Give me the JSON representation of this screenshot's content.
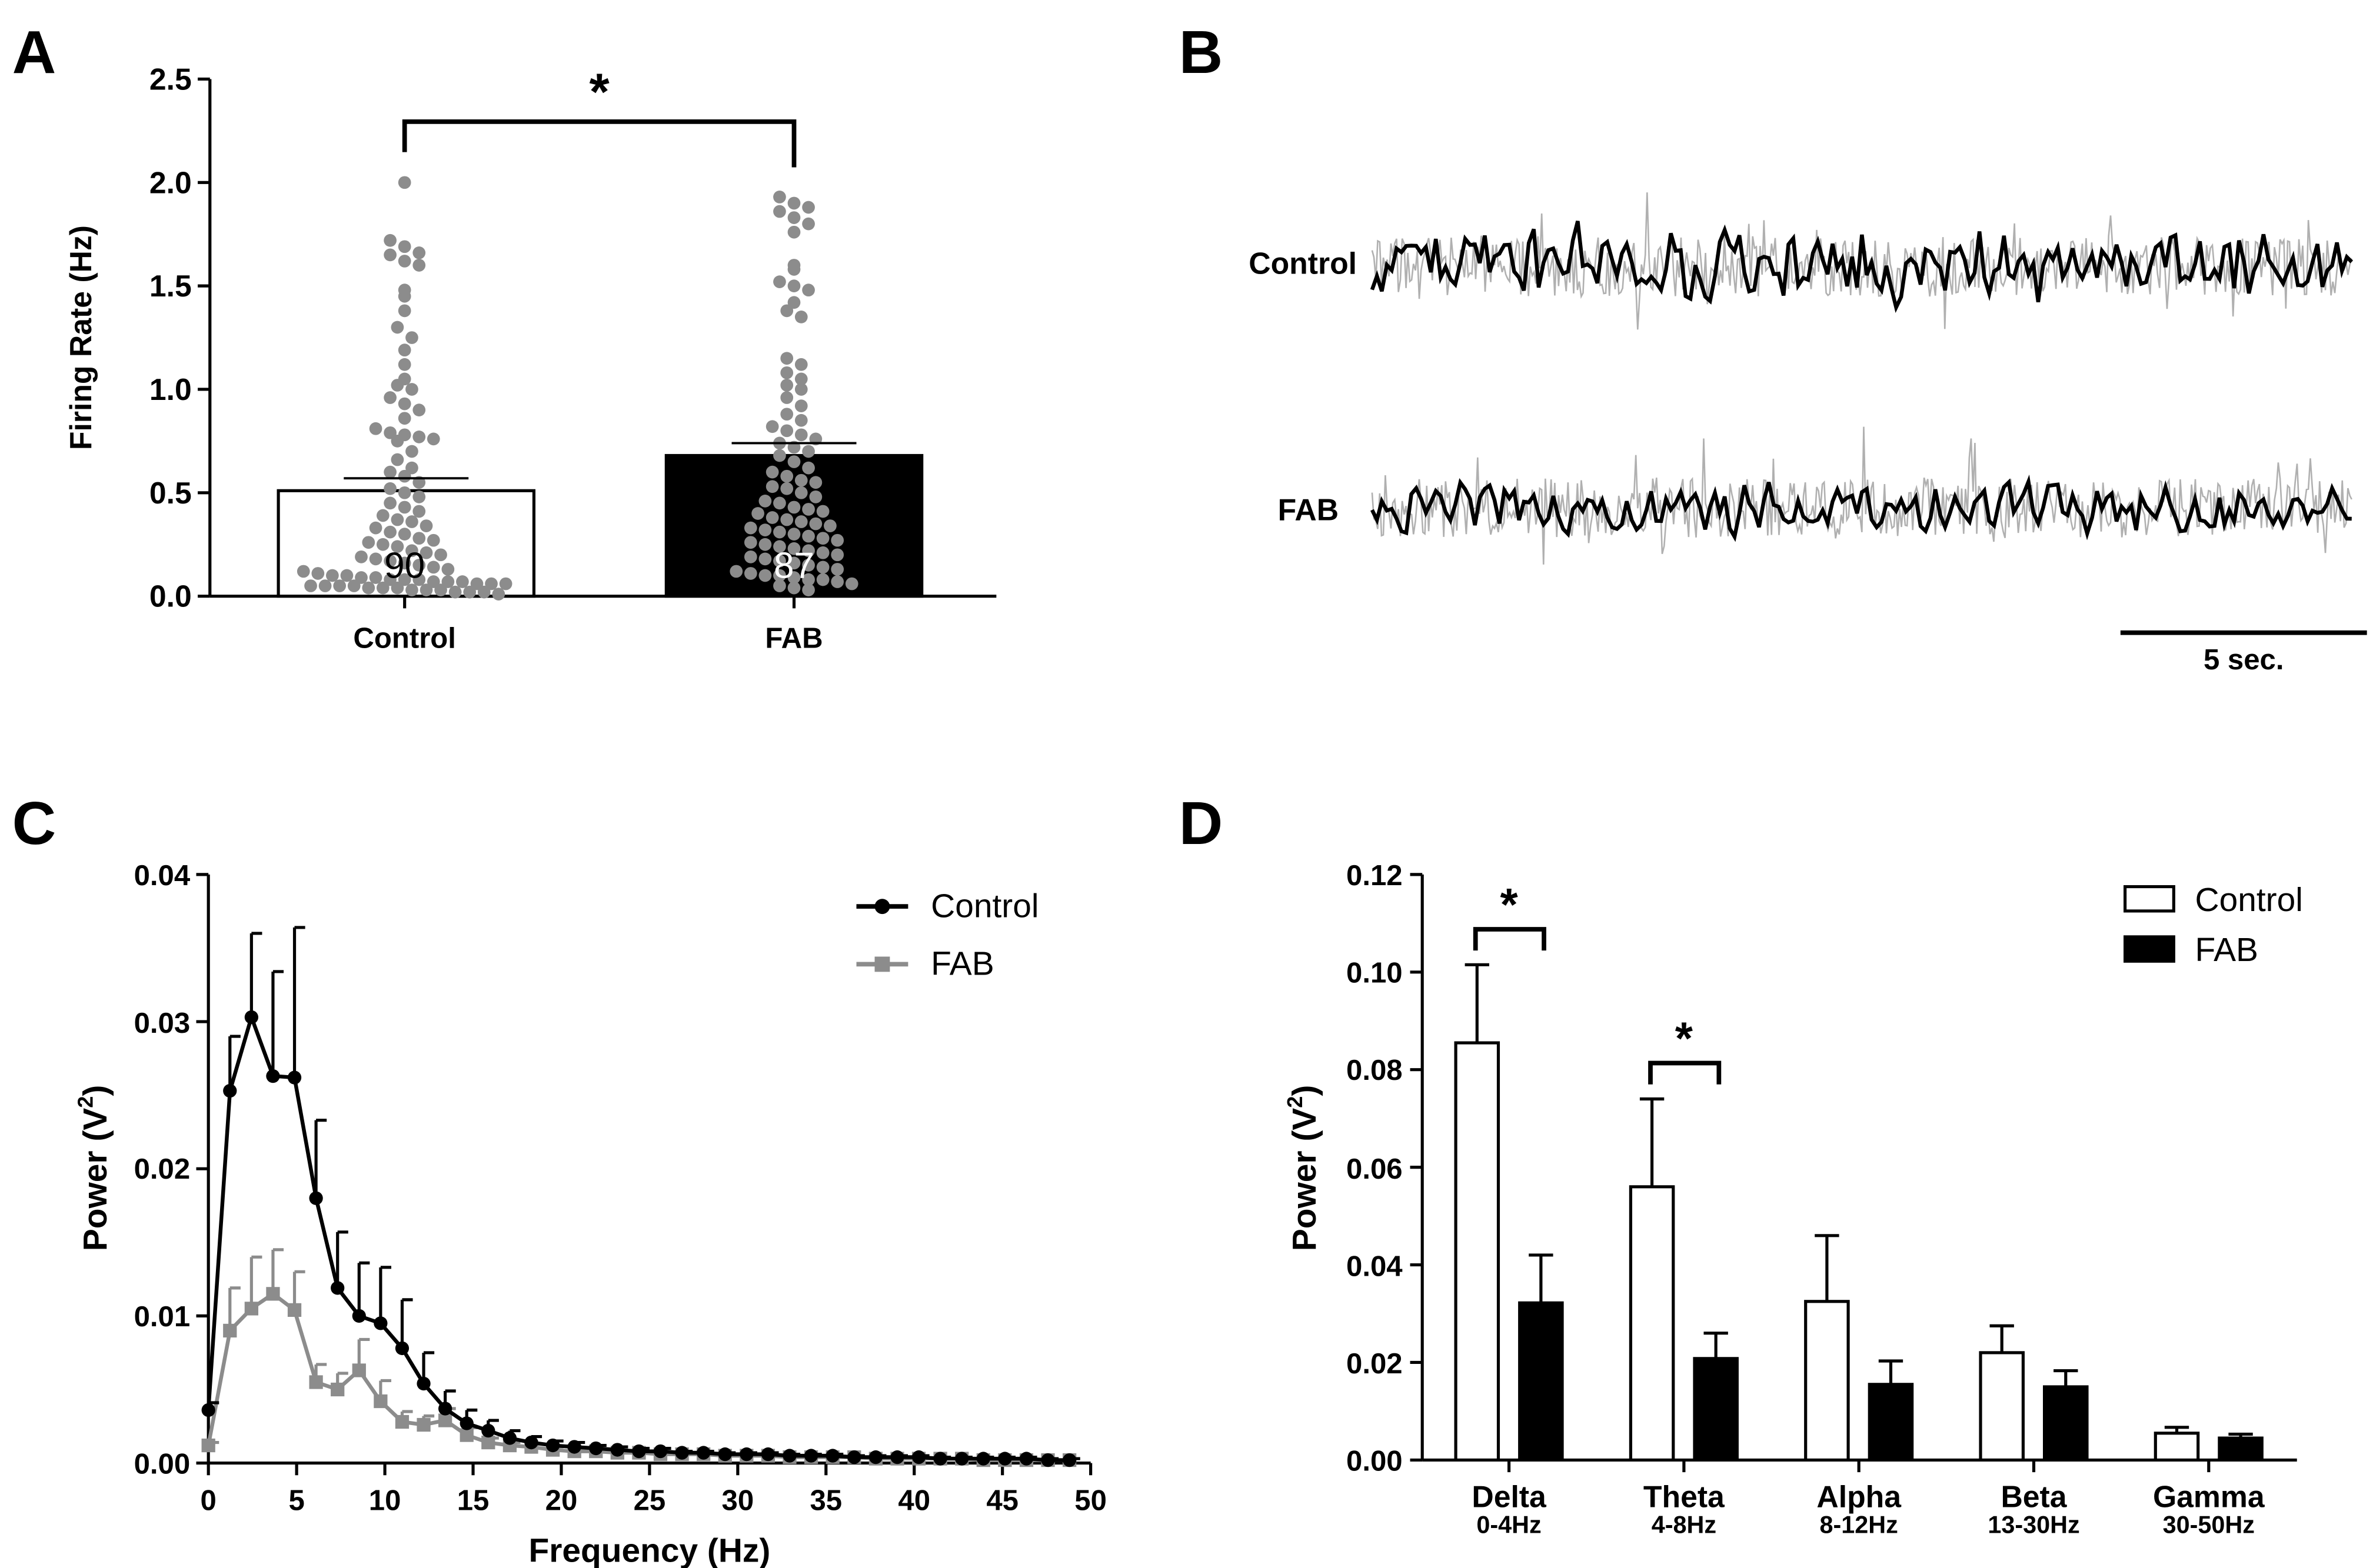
{
  "panels": {
    "a": "A",
    "b": "B",
    "c": "C",
    "d": "D"
  },
  "colors": {
    "black": "#000000",
    "gray": "#8c8c8c",
    "light_gray": "#b0b0b0",
    "white": "#ffffff"
  },
  "chart_data": [
    {
      "id": "A",
      "type": "bar",
      "ylabel": "Firing Rate  (Hz)",
      "ylim": [
        0,
        2.5
      ],
      "yticks": [
        "0.0",
        "0.5",
        "1.0",
        "1.5",
        "2.0",
        "2.5"
      ],
      "categories": [
        "Control",
        "FAB"
      ],
      "values": [
        0.51,
        0.68
      ],
      "sem": [
        0.06,
        0.06
      ],
      "n": [
        "90",
        "87"
      ],
      "significance": "*",
      "points_control": [
        2.0,
        1.72,
        1.69,
        1.66,
        1.65,
        1.62,
        1.6,
        1.48,
        1.45,
        1.38,
        1.3,
        1.25,
        1.19,
        1.12,
        1.05,
        1.02,
        1.0,
        0.96,
        0.93,
        0.9,
        0.86,
        0.81,
        0.79,
        0.78,
        0.77,
        0.76,
        0.75,
        0.7,
        0.66,
        0.62,
        0.6,
        0.58,
        0.55,
        0.52,
        0.5,
        0.48,
        0.45,
        0.43,
        0.41,
        0.39,
        0.37,
        0.36,
        0.34,
        0.33,
        0.31,
        0.3,
        0.28,
        0.27,
        0.26,
        0.25,
        0.24,
        0.22,
        0.21,
        0.2,
        0.19,
        0.18,
        0.17,
        0.16,
        0.15,
        0.14,
        0.13,
        0.12,
        0.11,
        0.1,
        0.1,
        0.09,
        0.09,
        0.08,
        0.08,
        0.08,
        0.07,
        0.07,
        0.07,
        0.06,
        0.06,
        0.06,
        0.05,
        0.05,
        0.05,
        0.05,
        0.04,
        0.04,
        0.04,
        0.03,
        0.03,
        0.03,
        0.02,
        0.02,
        0.02,
        0.01
      ],
      "points_fab": [
        1.93,
        1.9,
        1.88,
        1.86,
        1.83,
        1.8,
        1.76,
        1.6,
        1.58,
        1.52,
        1.5,
        1.48,
        1.42,
        1.38,
        1.35,
        1.15,
        1.12,
        1.08,
        1.05,
        1.02,
        1.0,
        0.96,
        0.92,
        0.88,
        0.85,
        0.82,
        0.8,
        0.78,
        0.76,
        0.74,
        0.72,
        0.7,
        0.68,
        0.65,
        0.62,
        0.6,
        0.58,
        0.56,
        0.55,
        0.53,
        0.52,
        0.5,
        0.48,
        0.46,
        0.45,
        0.43,
        0.42,
        0.41,
        0.4,
        0.38,
        0.37,
        0.36,
        0.35,
        0.34,
        0.33,
        0.32,
        0.31,
        0.3,
        0.29,
        0.28,
        0.27,
        0.26,
        0.25,
        0.24,
        0.23,
        0.22,
        0.21,
        0.2,
        0.19,
        0.18,
        0.17,
        0.16,
        0.15,
        0.14,
        0.13,
        0.12,
        0.11,
        0.1,
        0.1,
        0.09,
        0.08,
        0.08,
        0.07,
        0.06,
        0.05,
        0.04,
        0.03
      ]
    },
    {
      "id": "B",
      "type": "line",
      "traces": [
        "Control",
        "FAB"
      ],
      "scalebar_label": "5 sec."
    },
    {
      "id": "C",
      "type": "line",
      "xlabel": "Frequency (Hz)",
      "ylabel": "Power  (V",
      "ylabel_sup": "2",
      "ylabel_end": ")",
      "xlim": [
        0,
        50
      ],
      "ylim": [
        0,
        0.04
      ],
      "xticks": [
        "0",
        "5",
        "10",
        "15",
        "20",
        "25",
        "30",
        "35",
        "40",
        "45",
        "50"
      ],
      "yticks": [
        "0.00",
        "0.01",
        "0.02",
        "0.03",
        "0.04"
      ],
      "x": [
        0,
        1.22,
        2.44,
        3.66,
        4.88,
        6.1,
        7.32,
        8.54,
        9.76,
        10.98,
        12.2,
        13.42,
        14.64,
        15.86,
        17.08,
        18.3,
        19.52,
        20.74,
        21.96,
        23.18,
        24.4,
        25.62,
        26.84,
        28.06,
        29.28,
        30.5,
        31.72,
        32.94,
        34.16,
        35.38,
        36.6,
        37.82,
        39.04,
        40.26,
        41.48,
        42.7,
        43.92,
        45.14,
        46.36,
        47.58,
        48.8
      ],
      "series": [
        {
          "name": "Control",
          "values": [
            0.0036,
            0.0253,
            0.0303,
            0.0263,
            0.0262,
            0.018,
            0.0119,
            0.01,
            0.0095,
            0.0078,
            0.0054,
            0.0037,
            0.0027,
            0.0022,
            0.0017,
            0.0014,
            0.0012,
            0.0011,
            0.001,
            0.0009,
            0.0008,
            0.0008,
            0.0007,
            0.0007,
            0.0006,
            0.0006,
            0.0006,
            0.0005,
            0.0005,
            0.0005,
            0.0004,
            0.0004,
            0.0004,
            0.0004,
            0.0003,
            0.0003,
            0.0003,
            0.0003,
            0.0003,
            0.0002,
            0.0002
          ],
          "errors": [
            0.0005,
            0.0037,
            0.0057,
            0.0071,
            0.0102,
            0.0053,
            0.0038,
            0.0036,
            0.0038,
            0.0033,
            0.0021,
            0.0012,
            0.0009,
            0.0007,
            0.0005,
            0.0004,
            0.0003,
            0.0003,
            0.0002,
            0.0002,
            0.0002,
            0.0002,
            0.0001,
            0.0001,
            0.0001,
            0.0001,
            0.0001,
            0.0001,
            0.0001,
            0.0001,
            0.0001,
            0.0001,
            0.0001,
            0.0001,
            0.0001,
            0.0001,
            0.0001,
            0.0001,
            0.0001,
            0.0001,
            0.0001
          ]
        },
        {
          "name": "FAB",
          "values": [
            0.0012,
            0.009,
            0.0105,
            0.0115,
            0.0104,
            0.0055,
            0.005,
            0.0063,
            0.0042,
            0.0028,
            0.0026,
            0.0029,
            0.0019,
            0.0014,
            0.0012,
            0.0011,
            0.0009,
            0.0008,
            0.0008,
            0.0007,
            0.0007,
            0.0006,
            0.0006,
            0.0006,
            0.0005,
            0.0005,
            0.0005,
            0.0004,
            0.0004,
            0.0004,
            0.0004,
            0.0003,
            0.0003,
            0.0003,
            0.0003,
            0.0003,
            0.0002,
            0.0002,
            0.0002,
            0.0002,
            0.0002
          ],
          "errors": [
            0.0002,
            0.0029,
            0.0035,
            0.003,
            0.0026,
            0.0012,
            0.0011,
            0.0021,
            0.0014,
            0.0007,
            0.0006,
            0.0008,
            0.0005,
            0.0003,
            0.0002,
            0.0002,
            0.0002,
            0.0001,
            0.0001,
            0.0001,
            0.0001,
            0.0001,
            0.0001,
            0.0001,
            0.0001,
            0.0001,
            0.0001,
            0.0001,
            0.0001,
            0.0001,
            0.0001,
            0.0001,
            0.0001,
            0.0001,
            0.0001,
            0.0001,
            0.0001,
            0.0001,
            0.0001,
            0.0001,
            0.0001
          ]
        }
      ],
      "legend": [
        "Control",
        "FAB"
      ]
    },
    {
      "id": "D",
      "type": "bar",
      "ylabel": "Power (V",
      "ylabel_sup": "2",
      "ylabel_end": ")",
      "ylim": [
        0,
        0.12
      ],
      "yticks": [
        "0.00",
        "0.02",
        "0.04",
        "0.06",
        "0.08",
        "0.10",
        "0.12"
      ],
      "categories": [
        "Delta",
        "Theta",
        "Alpha",
        "Beta",
        "Gamma"
      ],
      "ranges": [
        "0-4Hz",
        "4-8Hz",
        "8-12Hz",
        "13-30Hz",
        "30-50Hz"
      ],
      "series": [
        {
          "name": "Control",
          "values": [
            0.0855,
            0.056,
            0.0325,
            0.022,
            0.0055
          ],
          "errors": [
            0.016,
            0.018,
            0.0135,
            0.0055,
            0.0012
          ]
        },
        {
          "name": "FAB",
          "values": [
            0.0322,
            0.0208,
            0.0155,
            0.015,
            0.0045
          ],
          "errors": [
            0.0098,
            0.0052,
            0.0048,
            0.0033,
            0.0008
          ]
        }
      ],
      "significance": [
        {
          "category": "Delta",
          "mark": "*"
        },
        {
          "category": "Theta",
          "mark": "*"
        }
      ],
      "legend": [
        "Control",
        "FAB"
      ]
    }
  ]
}
